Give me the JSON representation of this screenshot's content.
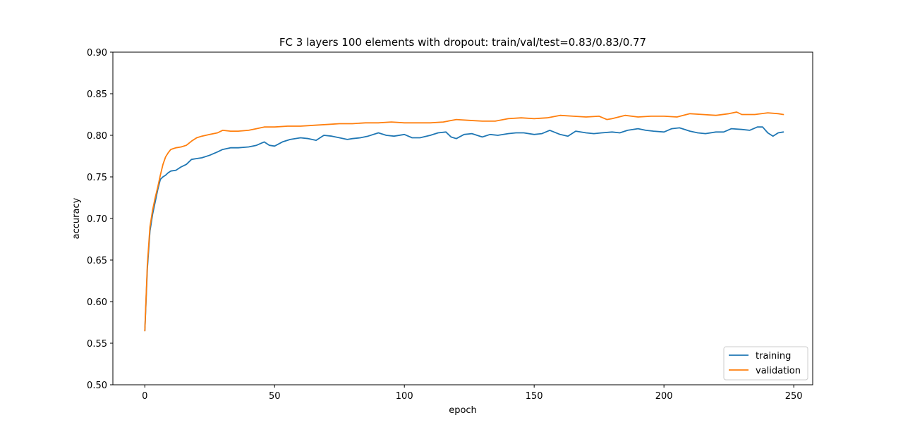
{
  "chart_data": {
    "type": "line",
    "title": "FC 3 layers 100 elements with dropout: train/val/test=0.83/0.83/0.77",
    "xlabel": "epoch",
    "ylabel": "accuracy",
    "xlim": [
      -12.3,
      257.3
    ],
    "ylim": [
      0.5,
      0.9
    ],
    "xticks": [
      0,
      50,
      100,
      150,
      200,
      250
    ],
    "yticks": [
      0.5,
      0.55,
      0.6,
      0.65,
      0.7,
      0.75,
      0.8,
      0.85,
      0.9
    ],
    "xtick_labels": [
      "0",
      "50",
      "100",
      "150",
      "200",
      "250"
    ],
    "ytick_labels": [
      "0.50",
      "0.55",
      "0.60",
      "0.65",
      "0.70",
      "0.75",
      "0.80",
      "0.85",
      "0.90"
    ],
    "grid": false,
    "legend_position": "bottom-right",
    "series": [
      {
        "name": "training",
        "color": "#1f77b4",
        "x": [
          0,
          1,
          2,
          3,
          4,
          5,
          6,
          7,
          8,
          9,
          10,
          12,
          14,
          16,
          18,
          20,
          22,
          25,
          28,
          30,
          33,
          36,
          40,
          43,
          46,
          48,
          50,
          53,
          56,
          60,
          63,
          66,
          69,
          72,
          75,
          78,
          80,
          83,
          86,
          90,
          93,
          96,
          100,
          103,
          106,
          110,
          113,
          116,
          118,
          120,
          123,
          126,
          130,
          133,
          136,
          140,
          143,
          146,
          150,
          153,
          156,
          160,
          163,
          166,
          170,
          173,
          176,
          180,
          183,
          186,
          190,
          193,
          196,
          200,
          203,
          206,
          210,
          213,
          216,
          220,
          223,
          226,
          230,
          233,
          236,
          238,
          240,
          242,
          244,
          246
        ],
        "y": [
          0.565,
          0.64,
          0.685,
          0.705,
          0.72,
          0.735,
          0.747,
          0.75,
          0.752,
          0.755,
          0.757,
          0.758,
          0.762,
          0.765,
          0.771,
          0.772,
          0.773,
          0.776,
          0.78,
          0.783,
          0.785,
          0.785,
          0.786,
          0.788,
          0.792,
          0.788,
          0.787,
          0.792,
          0.795,
          0.797,
          0.796,
          0.794,
          0.8,
          0.799,
          0.797,
          0.795,
          0.796,
          0.797,
          0.799,
          0.803,
          0.8,
          0.799,
          0.801,
          0.797,
          0.797,
          0.8,
          0.803,
          0.804,
          0.798,
          0.796,
          0.801,
          0.802,
          0.798,
          0.801,
          0.8,
          0.802,
          0.803,
          0.803,
          0.801,
          0.802,
          0.806,
          0.801,
          0.799,
          0.805,
          0.803,
          0.802,
          0.803,
          0.804,
          0.803,
          0.806,
          0.808,
          0.806,
          0.805,
          0.804,
          0.808,
          0.809,
          0.805,
          0.803,
          0.802,
          0.804,
          0.804,
          0.808,
          0.807,
          0.806,
          0.81,
          0.81,
          0.803,
          0.799,
          0.803,
          0.804
        ]
      },
      {
        "name": "validation",
        "color": "#ff7f0e",
        "x": [
          0,
          1,
          2,
          3,
          4,
          5,
          6,
          7,
          8,
          9,
          10,
          11,
          12,
          14,
          16,
          18,
          20,
          22,
          25,
          28,
          30,
          33,
          36,
          40,
          43,
          46,
          50,
          55,
          60,
          65,
          70,
          75,
          80,
          85,
          90,
          95,
          100,
          105,
          110,
          115,
          120,
          125,
          130,
          135,
          140,
          145,
          150,
          155,
          160,
          165,
          170,
          175,
          178,
          180,
          185,
          190,
          195,
          200,
          205,
          210,
          215,
          220,
          225,
          228,
          230,
          235,
          240,
          244,
          246
        ],
        "y": [
          0.565,
          0.645,
          0.69,
          0.71,
          0.725,
          0.738,
          0.752,
          0.765,
          0.774,
          0.779,
          0.783,
          0.784,
          0.785,
          0.786,
          0.788,
          0.793,
          0.797,
          0.799,
          0.801,
          0.803,
          0.806,
          0.805,
          0.805,
          0.806,
          0.808,
          0.81,
          0.81,
          0.811,
          0.811,
          0.812,
          0.813,
          0.814,
          0.814,
          0.815,
          0.815,
          0.816,
          0.815,
          0.815,
          0.815,
          0.816,
          0.819,
          0.818,
          0.817,
          0.817,
          0.82,
          0.821,
          0.82,
          0.821,
          0.824,
          0.823,
          0.822,
          0.823,
          0.819,
          0.82,
          0.824,
          0.822,
          0.823,
          0.823,
          0.822,
          0.826,
          0.825,
          0.824,
          0.826,
          0.828,
          0.825,
          0.825,
          0.827,
          0.826,
          0.825
        ]
      }
    ]
  }
}
